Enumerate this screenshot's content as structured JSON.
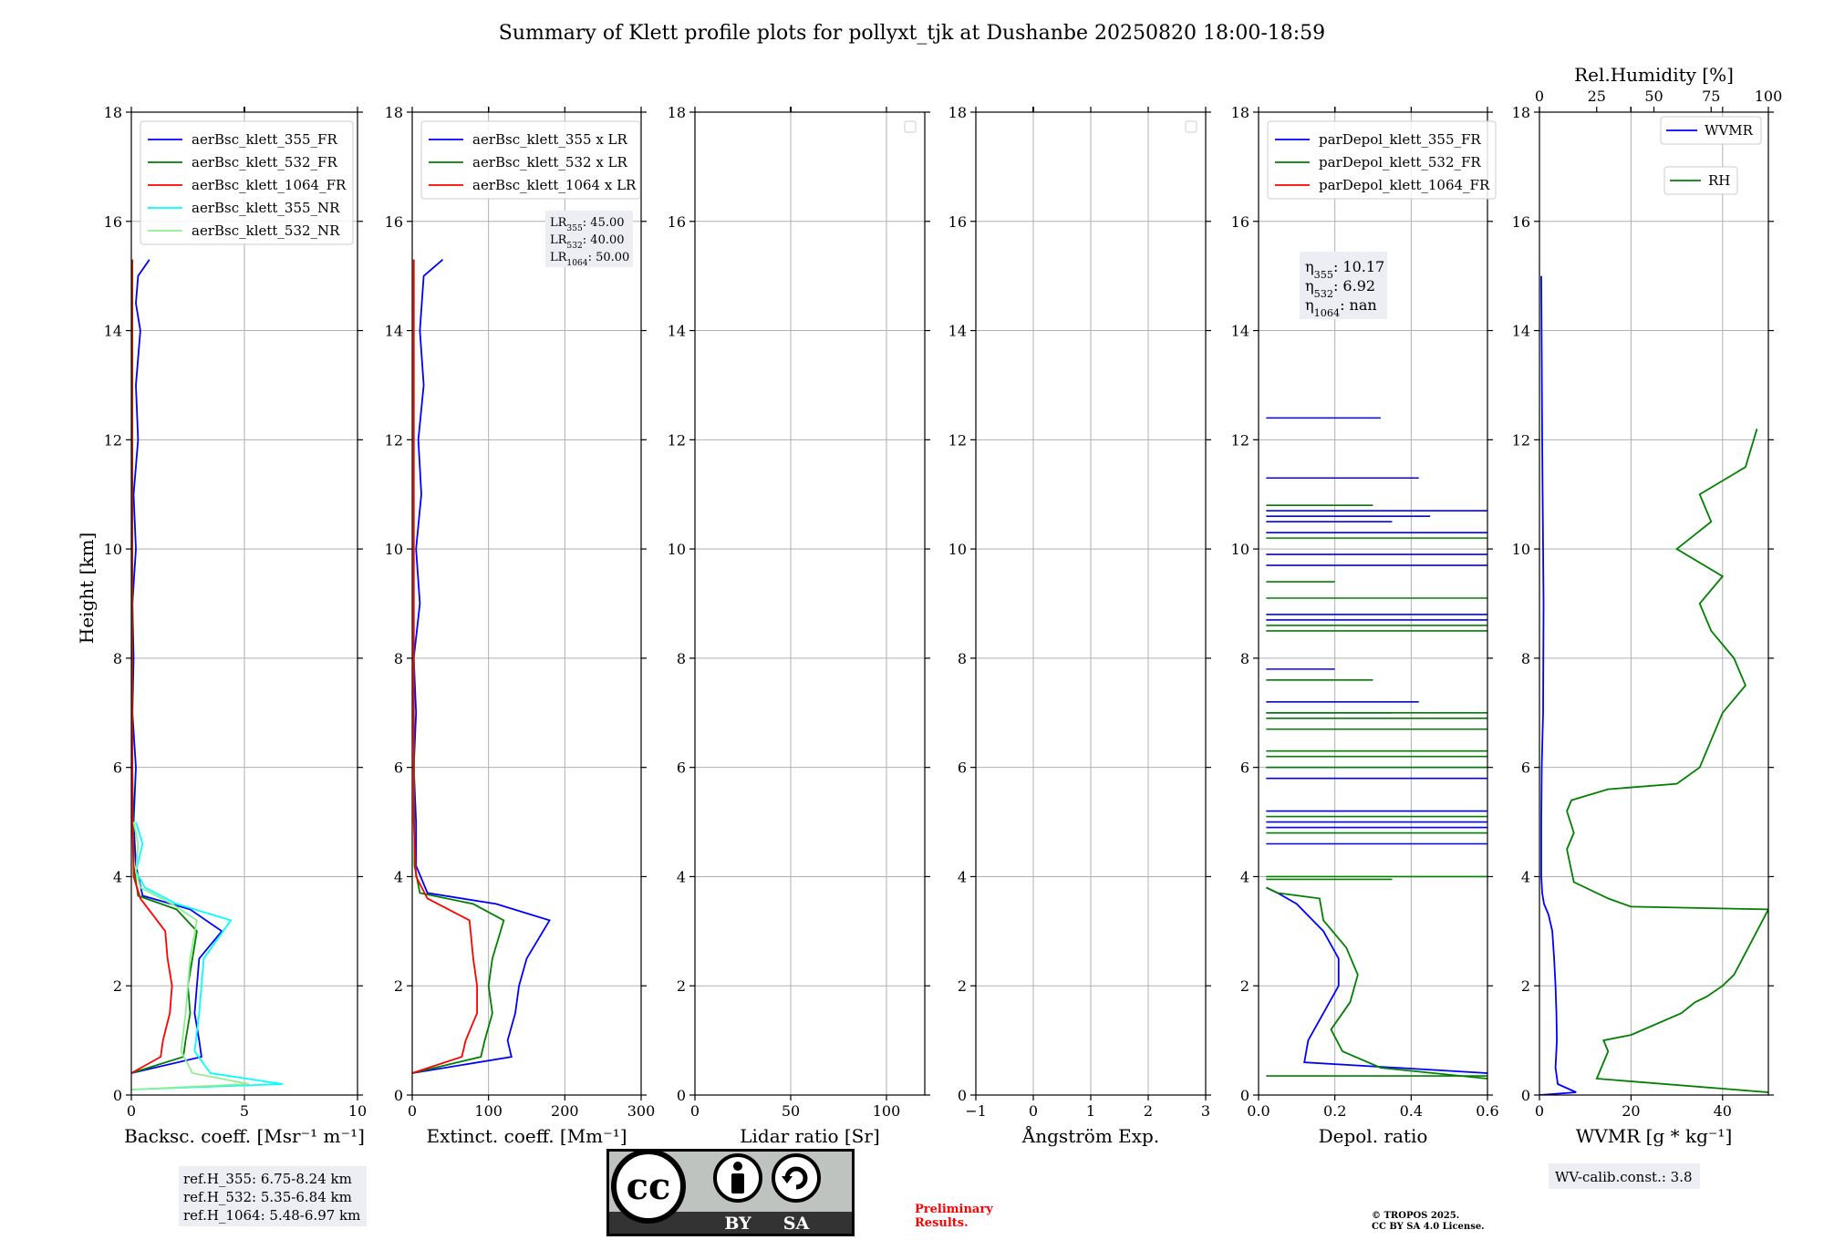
{
  "title": "Summary of Klett profile plots for pollyxt_tjk at Dushanbe 20250820 18:00-18:59",
  "colors": {
    "blue": "#0000ff",
    "green": "#008000",
    "red": "#ff0000",
    "cyan": "#00ffff",
    "lightgreen": "#90ee90",
    "grid": "#b0b0b0",
    "boxbg": "#eceef4",
    "prelim": "#ff0000",
    "ccgray": "#bfc3bf",
    "ccdark": "#333333"
  },
  "ylabel": "Height [km]",
  "ylim": [
    0,
    18
  ],
  "yticks": [
    0,
    2,
    4,
    6,
    8,
    10,
    12,
    14,
    16,
    18
  ],
  "chart_data": [
    {
      "type": "line",
      "id": "bsc",
      "xlabel": "Backsc. coeff. [Msr⁻¹ m⁻¹]",
      "xlim": [
        0,
        10
      ],
      "xticks": [
        0,
        5,
        10
      ],
      "xtick_labels": [
        "0",
        "5",
        "10"
      ],
      "legend": [
        "aerBsc_klett_355_FR",
        "aerBsc_klett_532_FR",
        "aerBsc_klett_1064_FR",
        "aerBsc_klett_355_NR",
        "aerBsc_klett_532_NR"
      ],
      "series": [
        {
          "name": "aerBsc_klett_355_FR",
          "color": "blue",
          "x": [
            0,
            3.1,
            3.0,
            2.8,
            2.9,
            3.0,
            4.0,
            2.6,
            0.5,
            0.2,
            0.1,
            0.2,
            0.05,
            0.1,
            0.05,
            0.2,
            0.1,
            0.3,
            0.2,
            0.4,
            0.2,
            0.3,
            0.8
          ],
          "y": [
            0.4,
            0.7,
            1.0,
            1.5,
            2.0,
            2.5,
            3.0,
            3.4,
            3.65,
            4.2,
            5,
            6,
            7,
            8,
            9,
            10,
            11,
            12,
            13,
            14,
            14.5,
            15,
            15.3
          ]
        },
        {
          "name": "aerBsc_klett_532_FR",
          "color": "green",
          "x": [
            0,
            2.3,
            2.4,
            2.6,
            2.5,
            2.7,
            2.9,
            2.0,
            0.3,
            0.1,
            0.05,
            0.05,
            0.05,
            0.05,
            0.05
          ],
          "y": [
            0.4,
            0.7,
            1.0,
            1.5,
            2.0,
            2.5,
            3.0,
            3.4,
            3.65,
            4.2,
            6,
            9,
            12,
            14,
            15.3
          ]
        },
        {
          "name": "aerBsc_klett_1064_FR",
          "color": "red",
          "x": [
            0,
            1.3,
            1.4,
            1.7,
            1.8,
            1.6,
            1.5,
            0.4,
            0.1,
            0.05,
            0.03,
            0.03,
            0.03,
            0.03
          ],
          "y": [
            0.4,
            0.7,
            1.0,
            1.5,
            2.0,
            2.5,
            3.0,
            3.6,
            4.0,
            5,
            8,
            11,
            14,
            15.3
          ]
        },
        {
          "name": "aerBsc_klett_355_NR",
          "color": "cyan",
          "x": [
            0,
            6.7,
            3.5,
            2.8,
            3.0,
            3.2,
            4.4,
            2.0,
            0.6,
            0.2,
            0.5,
            0.2
          ],
          "y": [
            0.1,
            0.2,
            0.4,
            0.8,
            1.5,
            2.5,
            3.2,
            3.5,
            3.8,
            4.1,
            4.6,
            5.0
          ]
        },
        {
          "name": "aerBsc_klett_532_NR",
          "color": "lightgreen",
          "x": [
            0,
            5.2,
            2.7,
            2.2,
            2.4,
            2.6,
            2.9,
            1.8,
            0.4,
            0.2,
            0.3,
            0.1
          ],
          "y": [
            0.1,
            0.2,
            0.4,
            0.8,
            1.5,
            2.5,
            3.2,
            3.5,
            3.8,
            4.1,
            4.6,
            5.0
          ]
        }
      ],
      "annotation": [
        "ref.H_355: 6.75-8.24 km",
        "ref.H_532: 5.35-6.84 km",
        "ref.H_1064: 5.48-6.97 km"
      ]
    },
    {
      "type": "line",
      "id": "ext",
      "xlabel": "Extinct. coeff. [Mm⁻¹]",
      "xlim": [
        0,
        300
      ],
      "xticks": [
        0,
        100,
        200,
        300
      ],
      "xtick_labels": [
        "0",
        "100",
        "200",
        "300"
      ],
      "legend": [
        "aerBsc_klett_355 x LR",
        "aerBsc_klett_532 x LR",
        "aerBsc_klett_1064 x LR"
      ],
      "series": [
        {
          "name": "aerBsc_klett_355 x LR",
          "color": "blue",
          "x": [
            0,
            130,
            125,
            135,
            140,
            150,
            180,
            110,
            20,
            5,
            5,
            2,
            5,
            2,
            10,
            5,
            12,
            8,
            15,
            10,
            15,
            40
          ],
          "y": [
            0.4,
            0.7,
            1.0,
            1.5,
            2.0,
            2.5,
            3.2,
            3.5,
            3.7,
            4.2,
            5,
            6,
            7,
            8,
            9,
            10,
            11,
            12,
            13,
            14,
            15,
            15.3
          ]
        },
        {
          "name": "aerBsc_klett_532 x LR",
          "color": "green",
          "x": [
            0,
            90,
            95,
            105,
            100,
            105,
            120,
            80,
            10,
            3,
            2,
            2,
            2,
            2
          ],
          "y": [
            0.4,
            0.7,
            1.0,
            1.5,
            2.0,
            2.5,
            3.2,
            3.5,
            3.7,
            4.2,
            7,
            10,
            13,
            15.3
          ]
        },
        {
          "name": "aerBsc_klett_1064 x LR",
          "color": "red",
          "x": [
            0,
            65,
            70,
            85,
            85,
            80,
            75,
            20,
            5,
            2,
            2,
            2,
            2
          ],
          "y": [
            0.4,
            0.7,
            1.0,
            1.5,
            2.0,
            2.5,
            3.2,
            3.6,
            4.0,
            5,
            9,
            13,
            15.3
          ]
        }
      ],
      "lr_box": [
        {
          "pre": "LR",
          "sub": "355",
          "post": ": 45.00"
        },
        {
          "pre": "LR",
          "sub": "532",
          "post": ": 40.00"
        },
        {
          "pre": "LR",
          "sub": "1064",
          "post": ": 50.00"
        }
      ]
    },
    {
      "type": "line",
      "id": "lr",
      "xlabel": "Lidar ratio [Sr]",
      "xlim": [
        0,
        120
      ],
      "xticks": [
        0,
        50,
        100
      ],
      "xtick_labels": [
        "0",
        "50",
        "100"
      ],
      "legend": [],
      "series": []
    },
    {
      "type": "line",
      "id": "ang",
      "xlabel": "Ångström Exp.",
      "xlim": [
        -1,
        3
      ],
      "xticks": [
        -1,
        0,
        1,
        2,
        3
      ],
      "xtick_labels": [
        "−1",
        "0",
        "1",
        "2",
        "3"
      ],
      "legend": [],
      "series": []
    },
    {
      "type": "line",
      "id": "depol",
      "xlabel": "Depol. ratio",
      "xlim": [
        0,
        0.6
      ],
      "xticks": [
        0,
        0.2,
        0.4,
        0.6
      ],
      "xtick_labels": [
        "0.0",
        "0.2",
        "0.4",
        "0.6"
      ],
      "legend": [
        "parDepol_klett_355_FR",
        "parDepol_klett_532_FR",
        "parDepol_klett_1064_FR"
      ],
      "series": [
        {
          "name": "parDepol_klett_355_FR",
          "color": "blue",
          "x": [
            0.6,
            0.12,
            0.13,
            0.17,
            0.21,
            0.21,
            0.17,
            0.1,
            0.05,
            0.02
          ],
          "y": [
            0.4,
            0.6,
            1.0,
            1.5,
            2.0,
            2.5,
            3.0,
            3.5,
            3.7,
            3.8
          ]
        },
        {
          "name": "parDepol_klett_532_FR",
          "color": "green",
          "x": [
            0.6,
            0.32,
            0.22,
            0.19,
            0.24,
            0.26,
            0.23,
            0.17,
            0.16,
            0.05,
            0.02
          ],
          "y": [
            0.3,
            0.5,
            0.8,
            1.2,
            1.7,
            2.2,
            2.7,
            3.2,
            3.6,
            3.7,
            3.8
          ]
        }
      ],
      "spikes": {
        "blue": [
          [
            10.7,
            0.6
          ],
          [
            10.6,
            0.45
          ],
          [
            10.5,
            0.35
          ],
          [
            10.3,
            0.6
          ],
          [
            9.9,
            0.6
          ],
          [
            9.7,
            0.6
          ],
          [
            8.8,
            0.6
          ],
          [
            8.7,
            0.6
          ],
          [
            7.2,
            0.42
          ],
          [
            7.0,
            0.35
          ],
          [
            6.0,
            0.6
          ],
          [
            5.8,
            0.6
          ],
          [
            5.2,
            0.6
          ],
          [
            5.0,
            0.6
          ],
          [
            4.9,
            0.6
          ],
          [
            4.6,
            0.6
          ],
          [
            12.4,
            0.32
          ],
          [
            11.3,
            0.42
          ],
          [
            7.8,
            0.2
          ]
        ],
        "green": [
          [
            10.8,
            0.3
          ],
          [
            10.2,
            0.6
          ],
          [
            9.4,
            0.2
          ],
          [
            9.1,
            0.6
          ],
          [
            8.6,
            0.6
          ],
          [
            8.5,
            0.6
          ],
          [
            7.6,
            0.3
          ],
          [
            7.0,
            0.6
          ],
          [
            6.9,
            0.6
          ],
          [
            6.7,
            0.6
          ],
          [
            6.3,
            0.6
          ],
          [
            6.2,
            0.6
          ],
          [
            6.0,
            0.6
          ],
          [
            5.1,
            0.6
          ],
          [
            4.8,
            0.6
          ],
          [
            4.0,
            0.6
          ],
          [
            3.95,
            0.35
          ],
          [
            0.35,
            0.6
          ]
        ]
      },
      "eta_box": [
        {
          "pre": "η",
          "sub": "355",
          "post": ": 10.17"
        },
        {
          "pre": "η",
          "sub": "532",
          "post": ": 6.92"
        },
        {
          "pre": "η",
          "sub": "1064",
          "post": ": nan"
        }
      ]
    },
    {
      "type": "line",
      "id": "wv",
      "xlabel": "WVMR [g * kg⁻¹]",
      "xlim": [
        0,
        50
      ],
      "xticks": [
        0,
        20,
        40
      ],
      "xtick_labels": [
        "0",
        "20",
        "40"
      ],
      "top_label": "Rel.Humidity [%]",
      "top_lim": [
        0,
        100
      ],
      "top_ticks": [
        0,
        25,
        50,
        75,
        100
      ],
      "top_tick_labels": [
        "0",
        "25",
        "50",
        "75",
        "100"
      ],
      "legend": [
        "WVMR",
        "RH"
      ],
      "series": [
        {
          "name": "WVMR",
          "color": "blue",
          "x": [
            0,
            8,
            4,
            3.5,
            3.8,
            3.7,
            3.5,
            3.2,
            2.8,
            2.0,
            1.0,
            0.6,
            0.4,
            0.4,
            0.5,
            0.8,
            0.9,
            0.6,
            0.4
          ],
          "y": [
            0,
            0.05,
            0.2,
            0.5,
            1.0,
            1.5,
            2.0,
            2.5,
            3.0,
            3.3,
            3.5,
            3.7,
            4.0,
            5.0,
            6.0,
            7.0,
            9.0,
            12.0,
            15.0
          ]
        },
        {
          "name": "RH",
          "color": "green",
          "axis": "top",
          "x": [
            100,
            25,
            28,
            30,
            28,
            40,
            62,
            68,
            73,
            80,
            85,
            100,
            40,
            30,
            15,
            12,
            15,
            12,
            14,
            30,
            60,
            70,
            75,
            80,
            90,
            85,
            75,
            70,
            80,
            60,
            75,
            70,
            90,
            95
          ],
          "y": [
            0.05,
            0.3,
            0.6,
            0.8,
            1.0,
            1.1,
            1.5,
            1.7,
            1.8,
            2.0,
            2.2,
            3.4,
            3.45,
            3.6,
            3.9,
            4.5,
            4.8,
            5.2,
            5.4,
            5.6,
            5.7,
            6.0,
            6.5,
            7.0,
            7.5,
            8.0,
            8.5,
            9.0,
            9.5,
            10.0,
            10.5,
            11.0,
            11.5,
            12.2
          ]
        }
      ],
      "annotation": [
        "WV-calib.const.: 3.8"
      ]
    }
  ],
  "footer": {
    "prelim": [
      "Preliminary",
      "Results."
    ],
    "copyright": [
      "© TROPOS 2025.",
      "CC BY SA 4.0 License."
    ],
    "cc_by": "BY",
    "cc_sa": "SA",
    "cc_text": "cc"
  }
}
